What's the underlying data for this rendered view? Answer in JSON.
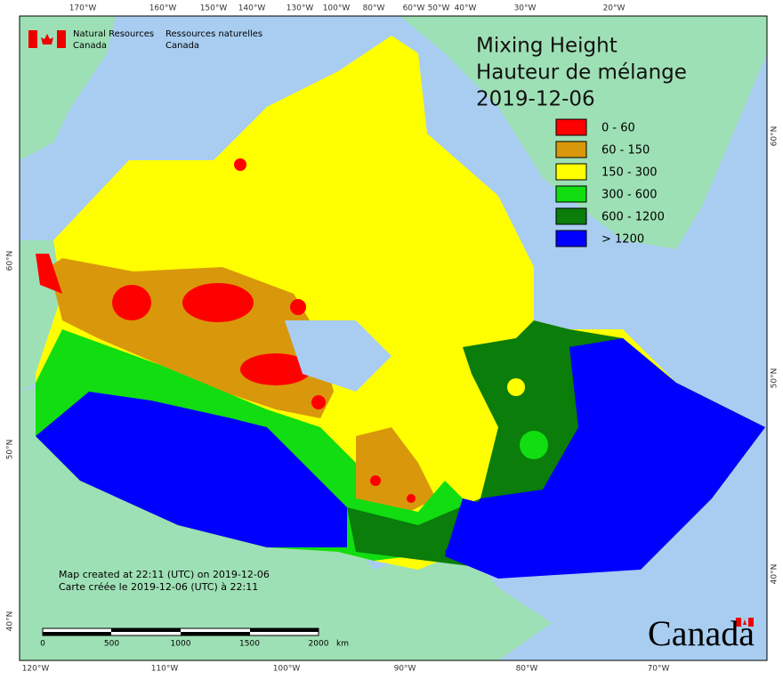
{
  "header": {
    "agency_en": [
      "Natural Resources",
      "Canada"
    ],
    "agency_fr": [
      "Ressources naturelles",
      "Canada"
    ]
  },
  "title": [
    "Mixing Height",
    "Hauteur de mélange",
    "2019-12-06"
  ],
  "legend": [
    {
      "label": "0 - 60",
      "color": "#ff0000"
    },
    {
      "label": "60 - 150",
      "color": "#d9980b"
    },
    {
      "label": "150 - 300",
      "color": "#ffff00"
    },
    {
      "label": "300 - 600",
      "color": "#11dd11"
    },
    {
      "label": "600 - 1200",
      "color": "#0a7d0a"
    },
    {
      "label": "> 1200",
      "color": "#0000ff"
    }
  ],
  "graticule": {
    "top": [
      "170°W",
      "160°W",
      "150°W",
      "140°W",
      "130°W",
      "100°W",
      "80°W",
      "60°W",
      "50°W",
      "40°W",
      "30°W",
      "20°W"
    ],
    "bottom": [
      "120°W",
      "110°W",
      "100°W",
      "90°W",
      "80°W",
      "70°W"
    ],
    "left": [
      "60°N",
      "50°N",
      "40°N"
    ],
    "right": [
      "60°N",
      "50°N",
      "40°N"
    ]
  },
  "notes": [
    "Map created at 22:11 (UTC) on 2019-12-06",
    "Carte créée le 2019-12-06 (UTC) à 22:11"
  ],
  "scale_bar": {
    "labels": [
      "0",
      "500",
      "1000",
      "1500",
      "2000"
    ],
    "unit": "km"
  },
  "wordmark": "Canada"
}
